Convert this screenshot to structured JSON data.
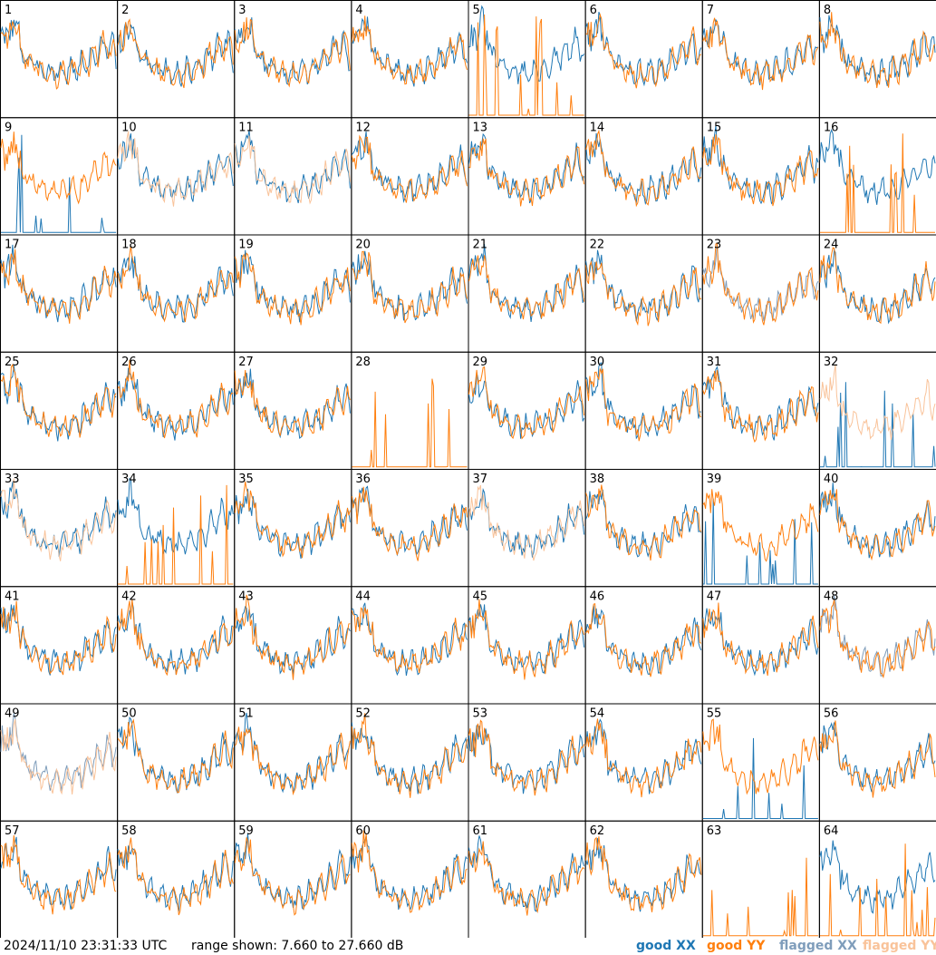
{
  "chart_data": {
    "type": "line",
    "grid": {
      "rows": 8,
      "cols": 8
    },
    "panel_labels": [
      "1",
      "2",
      "3",
      "4",
      "5",
      "6",
      "7",
      "8",
      "9",
      "10",
      "11",
      "12",
      "13",
      "14",
      "15",
      "16",
      "17",
      "18",
      "19",
      "20",
      "21",
      "22",
      "23",
      "24",
      "25",
      "26",
      "27",
      "28",
      "29",
      "30",
      "31",
      "32",
      "33",
      "34",
      "35",
      "36",
      "37",
      "38",
      "39",
      "40",
      "41",
      "42",
      "43",
      "44",
      "45",
      "46",
      "47",
      "48",
      "49",
      "50",
      "51",
      "52",
      "53",
      "54",
      "55",
      "56",
      "57",
      "58",
      "59",
      "60",
      "61",
      "62",
      "63",
      "64"
    ],
    "ylim_db": [
      7.66,
      27.66
    ],
    "series_styles": {
      "good_xx": "#1f77b4",
      "good_yy": "#ff7f0e",
      "flagged_xx": "#7f9dbb",
      "flagged_yy": "#f9c39a"
    },
    "panel_states": [
      [
        "good",
        "good"
      ],
      [
        "good",
        "good"
      ],
      [
        "good",
        "good"
      ],
      [
        "good",
        "good"
      ],
      [
        "good",
        "spike"
      ],
      [
        "good",
        "good"
      ],
      [
        "good",
        "good"
      ],
      [
        "good",
        "good"
      ],
      [
        "spike",
        "good"
      ],
      [
        "good",
        "flagged"
      ],
      [
        "good",
        "flagged"
      ],
      [
        "good",
        "good"
      ],
      [
        "good",
        "good"
      ],
      [
        "good",
        "good"
      ],
      [
        "good",
        "good"
      ],
      [
        "good",
        "spike"
      ],
      [
        "good",
        "good"
      ],
      [
        "good",
        "good"
      ],
      [
        "good",
        "good"
      ],
      [
        "good",
        "good"
      ],
      [
        "good",
        "good"
      ],
      [
        "good",
        "good"
      ],
      [
        "flagged",
        "good"
      ],
      [
        "good",
        "good"
      ],
      [
        "good",
        "good"
      ],
      [
        "good",
        "good"
      ],
      [
        "good",
        "good"
      ],
      [
        "dead",
        "spike"
      ],
      [
        "good",
        "good"
      ],
      [
        "good",
        "good"
      ],
      [
        "good",
        "good"
      ],
      [
        "spike",
        "flagged"
      ],
      [
        "good",
        "flagged"
      ],
      [
        "good",
        "spike"
      ],
      [
        "good",
        "good"
      ],
      [
        "good",
        "good"
      ],
      [
        "good",
        "flagged"
      ],
      [
        "good",
        "good"
      ],
      [
        "spike",
        "good"
      ],
      [
        "good",
        "good"
      ],
      [
        "good",
        "good"
      ],
      [
        "good",
        "good"
      ],
      [
        "good",
        "good"
      ],
      [
        "good",
        "good"
      ],
      [
        "good",
        "good"
      ],
      [
        "good",
        "good"
      ],
      [
        "good",
        "good"
      ],
      [
        "flagged",
        "good"
      ],
      [
        "flagged",
        "flagged"
      ],
      [
        "good",
        "good"
      ],
      [
        "good",
        "good"
      ],
      [
        "good",
        "good"
      ],
      [
        "good",
        "good"
      ],
      [
        "good",
        "good"
      ],
      [
        "spike",
        "good"
      ],
      [
        "good",
        "good"
      ],
      [
        "good",
        "good"
      ],
      [
        "good",
        "good"
      ],
      [
        "good",
        "good"
      ],
      [
        "good",
        "good"
      ],
      [
        "good",
        "good"
      ],
      [
        "good",
        "good"
      ],
      [
        "dead",
        "spike"
      ],
      [
        "good",
        "spike"
      ]
    ]
  },
  "footer": {
    "timestamp": "2024/11/10 23:31:33 UTC",
    "range": "range shown: 7.660 to 27.660 dB"
  },
  "legend": [
    {
      "label": "good XX",
      "color": "#1f77b4"
    },
    {
      "label": "good YY",
      "color": "#ff7f0e"
    },
    {
      "label": "flagged XX",
      "color": "#7f9dbb"
    },
    {
      "label": "flagged YY",
      "color": "#f9c39a"
    }
  ]
}
